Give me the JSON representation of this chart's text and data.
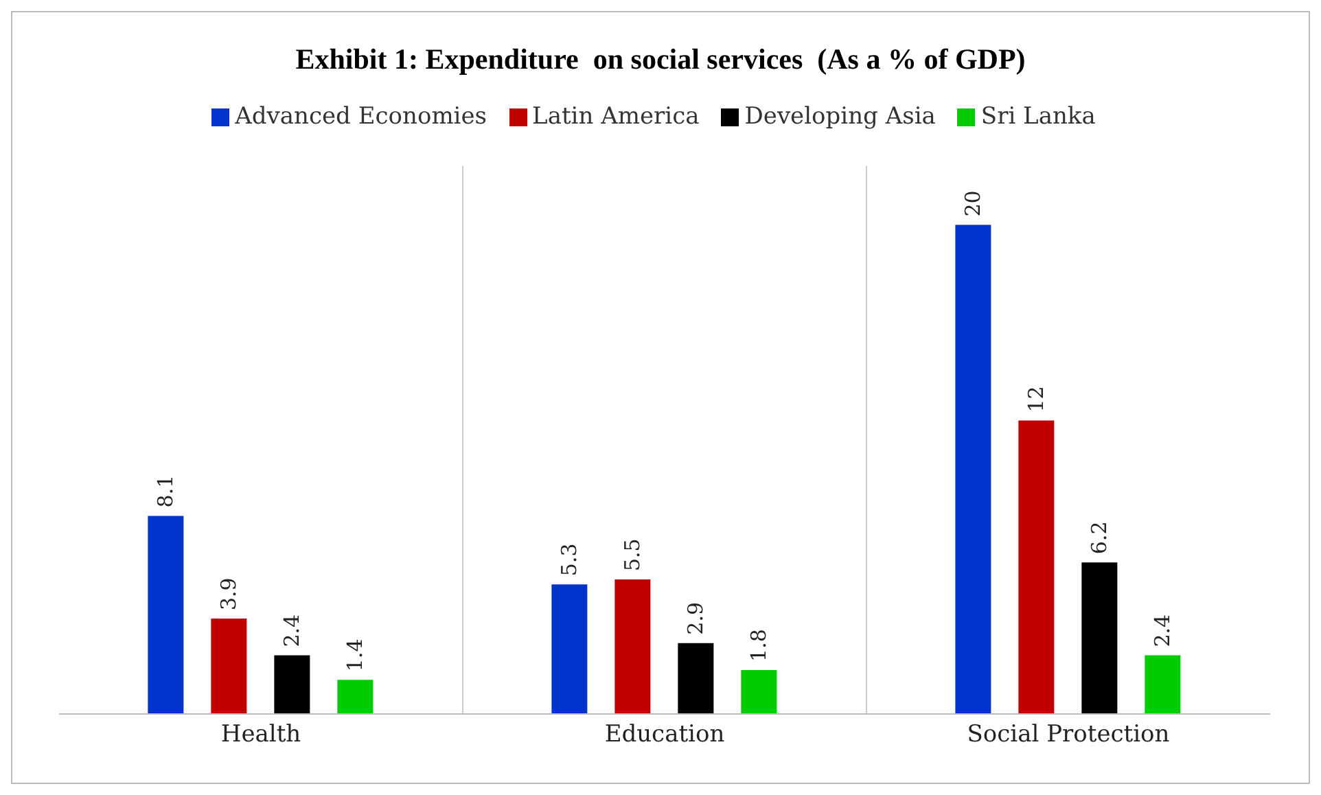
{
  "chart_data": {
    "type": "bar",
    "title": "Exhibit 1: Expenditure  on social services  (As a % of GDP)",
    "categories": [
      "Health",
      "Education",
      "Social Protection"
    ],
    "series": [
      {
        "name": "Advanced Economies",
        "color": "#0033cc",
        "values": [
          8.1,
          5.3,
          20
        ]
      },
      {
        "name": "Latin America",
        "color": "#c00000",
        "values": [
          3.9,
          5.5,
          12
        ]
      },
      {
        "name": "Developing Asia",
        "color": "#000000",
        "values": [
          2.4,
          2.9,
          6.2
        ]
      },
      {
        "name": "Sri Lanka",
        "color": "#00cc00",
        "values": [
          1.4,
          1.8,
          2.4
        ]
      }
    ],
    "data_labels": true,
    "tick_labels": "x",
    "grid": "x",
    "legend": "top"
  }
}
